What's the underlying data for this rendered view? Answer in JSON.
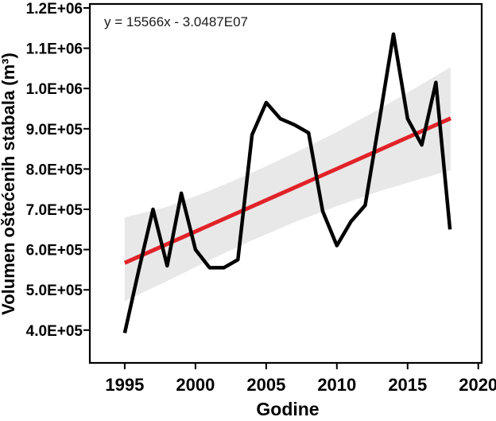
{
  "chart_data": {
    "type": "line",
    "title": "",
    "xlabel": "Godine",
    "ylabel": "Volumen oštećenih stabala (m³)",
    "annotation": "y = 15566x - 3.0487E07",
    "grid": false,
    "legend": false,
    "x_axis": {
      "min": 1992.53,
      "max": 2020.24,
      "ticks": [
        1995,
        2000,
        2005,
        2010,
        2015,
        2020
      ],
      "tick_labels": [
        "1995",
        "2000",
        "2005",
        "2010",
        "2015",
        "2020"
      ]
    },
    "y_axis": {
      "min": 318600,
      "max": 1209900,
      "ticks": [
        400000,
        500000,
        600000,
        700000,
        800000,
        900000,
        1000000,
        1100000,
        1200000
      ],
      "tick_labels": [
        "4.0E+05",
        "5.0E+05",
        "6.0E+05",
        "7.0E+05",
        "8.0E+05",
        "9.0E+05",
        "1.0E+06",
        "1.1E+06",
        "1.2E+06"
      ]
    },
    "series": [
      {
        "name": "volumen-ostecenih-stabala",
        "color": "#000000",
        "width": 4.5,
        "x": [
          1995,
          1996,
          1997,
          1998,
          1999,
          2000,
          2001,
          2002,
          2003,
          2004,
          2005,
          2006,
          2007,
          2008,
          2009,
          2010,
          2011,
          2012,
          2013,
          2014,
          2015,
          2016,
          2017,
          2018
        ],
        "y": [
          393000,
          550000,
          700000,
          560000,
          740000,
          600000,
          555000,
          555000,
          575000,
          885000,
          965000,
          925000,
          910000,
          890000,
          695000,
          610000,
          670000,
          710000,
          920000,
          1135000,
          925000,
          860000,
          1015000,
          650000
        ]
      }
    ],
    "trend_line": {
      "name": "linear-regression",
      "color": "#e12228",
      "width": 5,
      "slope": 15566,
      "intercept": -30487000,
      "x": [
        1995,
        2018.05
      ],
      "y": [
        567000,
        926000
      ]
    },
    "confidence_band": {
      "name": "confidence-interval",
      "color": "#e8e8e8",
      "x": [
        1995,
        1998,
        2001,
        2004,
        2007,
        2010,
        2013,
        2015,
        2018.05
      ],
      "upper": [
        680000,
        706000,
        746000,
        791000,
        840000,
        892000,
        949000,
        990000,
        1053000
      ],
      "lower": [
        472000,
        522000,
        574000,
        623000,
        668000,
        708000,
        745000,
        766000,
        797000
      ]
    },
    "frame_color": "#000000"
  }
}
